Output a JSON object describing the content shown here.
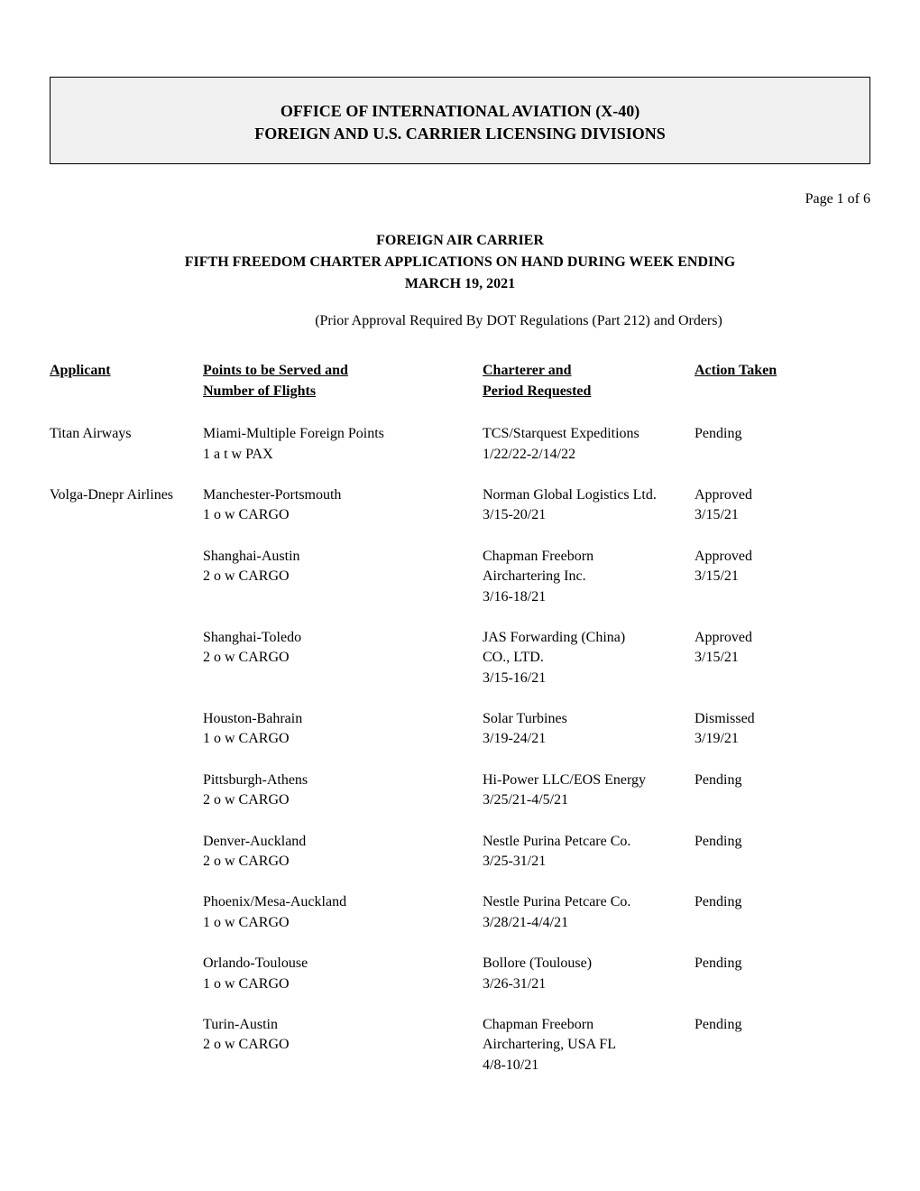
{
  "header": {
    "line1": "OFFICE OF INTERNATIONAL AVIATION (X-40)",
    "line2": "FOREIGN AND U.S. CARRIER LICENSING DIVISIONS"
  },
  "page_number": "Page 1 of 6",
  "doc_title": {
    "line1": "FOREIGN AIR CARRIER",
    "line2": "FIFTH FREEDOM CHARTER APPLICATIONS ON HAND DURING WEEK ENDING",
    "line3": "MARCH 19, 2021"
  },
  "subtitle": "(Prior Approval Required By DOT Regulations (Part 212) and Orders)",
  "columns": {
    "applicant": {
      "line1": "",
      "line2": "Applicant"
    },
    "points": {
      "line1": "Points to be Served and",
      "line2": "Number of Flights"
    },
    "charterer": {
      "line1": "Charterer and",
      "line2": "Period Requested"
    },
    "action": {
      "line1": "",
      "line2": "Action Taken"
    }
  },
  "rows": [
    {
      "applicant": "Titan Airways",
      "points_line1": "Miami-Multiple Foreign Points",
      "points_line2": "1 a t w  PAX",
      "charterer_line1": "TCS/Starquest Expeditions",
      "charterer_line2": "1/22/22-2/14/22",
      "charterer_line3": "",
      "action_line1": "Pending",
      "action_line2": ""
    },
    {
      "applicant": "Volga-Dnepr Airlines",
      "points_line1": "Manchester-Portsmouth",
      "points_line2": "1 o w  CARGO",
      "charterer_line1": "Norman Global Logistics Ltd.",
      "charterer_line2": "3/15-20/21",
      "charterer_line3": "",
      "action_line1": "Approved",
      "action_line2": "3/15/21"
    },
    {
      "applicant": "",
      "points_line1": "Shanghai-Austin",
      "points_line2": "2 o w  CARGO",
      "charterer_line1": "Chapman Freeborn",
      "charterer_line2": "Airchartering Inc.",
      "charterer_line3": "3/16-18/21",
      "action_line1": "Approved",
      "action_line2": "3/15/21"
    },
    {
      "applicant": "",
      "points_line1": "Shanghai-Toledo",
      "points_line2": "2 o w  CARGO",
      "charterer_line1": "JAS Forwarding (China)",
      "charterer_line2": "CO., LTD.",
      "charterer_line3": "3/15-16/21",
      "action_line1": "Approved",
      "action_line2": "3/15/21"
    },
    {
      "applicant": "",
      "points_line1": "Houston-Bahrain",
      "points_line2": "1 o w  CARGO",
      "charterer_line1": "Solar Turbines",
      "charterer_line2": "3/19-24/21",
      "charterer_line3": "",
      "action_line1": "Dismissed",
      "action_line2": "3/19/21"
    },
    {
      "applicant": "",
      "points_line1": "Pittsburgh-Athens",
      "points_line2": "2 o w  CARGO",
      "charterer_line1": "Hi-Power LLC/EOS Energy",
      "charterer_line2": "3/25/21-4/5/21",
      "charterer_line3": "",
      "action_line1": "Pending",
      "action_line2": ""
    },
    {
      "applicant": "",
      "points_line1": "Denver-Auckland",
      "points_line2": "2 o w  CARGO",
      "charterer_line1": "Nestle Purina Petcare Co.",
      "charterer_line2": "3/25-31/21",
      "charterer_line3": "",
      "action_line1": "Pending",
      "action_line2": ""
    },
    {
      "applicant": "",
      "points_line1": "Phoenix/Mesa-Auckland",
      "points_line2": "1 o w  CARGO",
      "charterer_line1": "Nestle Purina Petcare Co.",
      "charterer_line2": "3/28/21-4/4/21",
      "charterer_line3": "",
      "action_line1": "Pending",
      "action_line2": ""
    },
    {
      "applicant": "",
      "points_line1": "Orlando-Toulouse",
      "points_line2": "1 o w  CARGO",
      "charterer_line1": "Bollore (Toulouse)",
      "charterer_line2": "3/26-31/21",
      "charterer_line3": "",
      "action_line1": "Pending",
      "action_line2": ""
    },
    {
      "applicant": "",
      "points_line1": "Turin-Austin",
      "points_line2": "2 o w  CARGO",
      "charterer_line1": "Chapman Freeborn",
      "charterer_line2": "Airchartering, USA FL",
      "charterer_line3": "4/8-10/21",
      "action_line1": "Pending",
      "action_line2": ""
    }
  ]
}
